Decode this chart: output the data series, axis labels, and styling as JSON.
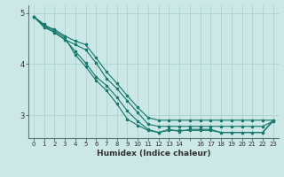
{
  "xlabel": "Humidex (Indice chaleur)",
  "background_color": "#cce8e6",
  "grid_color": "#aed4d0",
  "line_color": "#1a7a6e",
  "xlim": [
    -0.5,
    23.5
  ],
  "ylim": [
    2.55,
    5.15
  ],
  "yticks": [
    3,
    4,
    5
  ],
  "xtick_labels": [
    "0",
    "1",
    "2",
    "3",
    "4",
    "5",
    "6",
    "7",
    "8",
    "9",
    "10",
    "11",
    "12",
    "13",
    "14",
    "",
    "16",
    "17",
    "18",
    "19",
    "20",
    "21",
    "22",
    "23"
  ],
  "series1": [
    4.93,
    4.75,
    4.68,
    4.55,
    4.45,
    4.38,
    4.12,
    3.85,
    3.62,
    3.38,
    3.15,
    2.95,
    2.9,
    2.9,
    2.9,
    2.9,
    2.9,
    2.9,
    2.9,
    2.9,
    2.9,
    2.9,
    2.9,
    2.9
  ],
  "series2": [
    4.93,
    4.72,
    4.62,
    4.48,
    4.38,
    4.28,
    4.02,
    3.72,
    3.52,
    3.28,
    3.05,
    2.82,
    2.78,
    2.78,
    2.78,
    2.78,
    2.78,
    2.78,
    2.78,
    2.78,
    2.78,
    2.78,
    2.78,
    2.88
  ],
  "series3": [
    4.93,
    4.78,
    4.65,
    4.52,
    4.18,
    3.95,
    3.68,
    3.48,
    3.22,
    2.92,
    2.8,
    2.7,
    2.66,
    2.7,
    2.7,
    2.7,
    2.7,
    2.7,
    2.66,
    2.66,
    2.66,
    2.66,
    2.66,
    2.88
  ],
  "series4": [
    4.93,
    4.75,
    4.62,
    4.48,
    4.25,
    4.02,
    3.75,
    3.58,
    3.35,
    3.08,
    2.88,
    2.72,
    2.66,
    2.72,
    2.68,
    2.72,
    2.72,
    2.72,
    2.66,
    2.66,
    2.66,
    2.66,
    2.66,
    2.9
  ]
}
